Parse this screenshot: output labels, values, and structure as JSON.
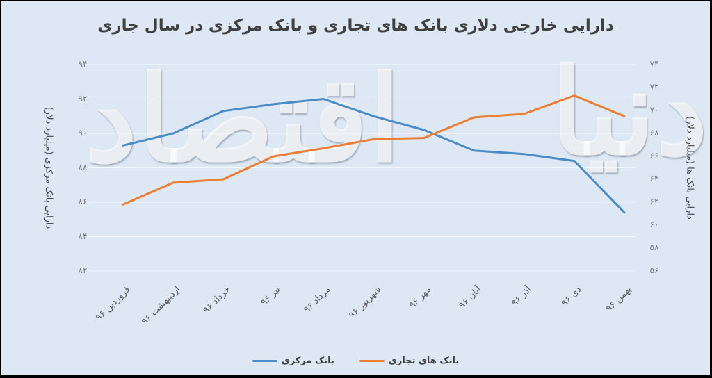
{
  "title": "دارایی خارجی دلاری بانک های تجاری و بانک مرکزی در سال جاری",
  "watermark": {
    "part1": "دنیا",
    "part2": "اقتصاد"
  },
  "axes": {
    "left_title": "دارایی بانک مرکزی (میلیارد دلار)",
    "right_title": "دارایی بانک ها (میلیارد دلار)",
    "left_ticks": [
      "۹۴",
      "۹۲",
      "۹۰",
      "۸۸",
      "۸۶",
      "۸۴",
      "۸۲"
    ],
    "right_ticks": [
      "۷۴",
      "۷۲",
      "۷۰",
      "۶۸",
      "۶۶",
      "۶۴",
      "۶۲",
      "۶۰",
      "۵۸",
      "۵۶"
    ]
  },
  "x_labels": [
    "فروردین ۹۶",
    "اردیبهشت ۹۶",
    "خرداد ۹۶",
    "تیر ۹۶",
    "مرداد ۹۶",
    "شهریور ۹۶",
    "مهر ۹۶",
    "آبان ۹۶",
    "آذر ۹۶",
    "دی ۹۶",
    "بهمن ۹۶"
  ],
  "legend": {
    "central": "بانک مرکزی",
    "commercial": "بانک های تجاری"
  },
  "colors": {
    "central": "#4a8cc8",
    "commercial": "#ed7d31",
    "background": "#dde8f4"
  },
  "chart_data": {
    "type": "line",
    "title": "دارایی خارجی دلاری بانک های تجاری و بانک مرکزی در سال جاری",
    "categories": [
      "فروردین ۹۶",
      "اردیبهشت ۹۶",
      "خرداد ۹۶",
      "تیر ۹۶",
      "مرداد ۹۶",
      "شهریور ۹۶",
      "مهر ۹۶",
      "آبان ۹۶",
      "آذر ۹۶",
      "دی ۹۶",
      "بهمن ۹۶"
    ],
    "series": [
      {
        "name": "بانک مرکزی",
        "axis": "left",
        "color": "#4a8cc8",
        "values": [
          89.3,
          90.0,
          91.3,
          91.7,
          92.0,
          91.0,
          90.2,
          89.0,
          88.8,
          88.4,
          85.4
        ]
      },
      {
        "name": "بانک های تجاری",
        "axis": "right",
        "color": "#ed7d31",
        "values": [
          61.8,
          63.7,
          64.0,
          66.0,
          66.7,
          67.5,
          67.6,
          69.4,
          69.7,
          71.3,
          69.5
        ]
      }
    ],
    "ylabel_left": "دارایی بانک مرکزی (میلیارد دلار)",
    "ylabel_right": "دارایی بانک ها (میلیارد دلار)",
    "ylim_left": [
      82,
      94
    ],
    "ylim_right": [
      56,
      74
    ],
    "grid": true,
    "legend_position": "bottom"
  }
}
